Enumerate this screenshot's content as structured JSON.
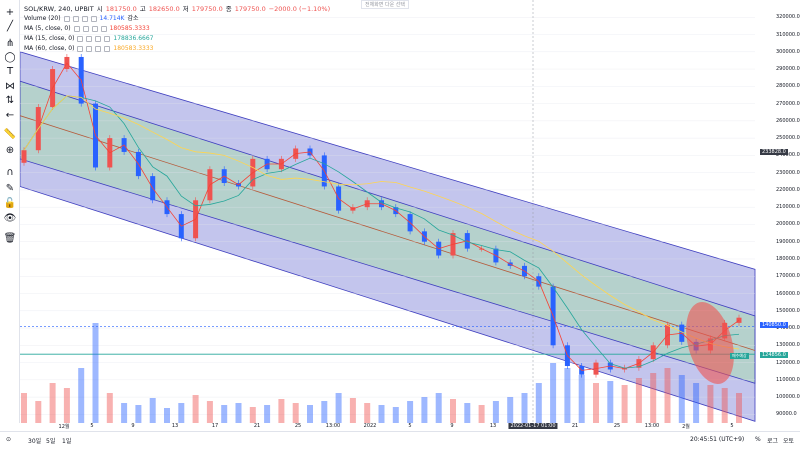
{
  "legend": {
    "symbol": "SOL/KRW, 240, UPBIT",
    "open_label": "시",
    "open": "181750.0",
    "high_label": "고",
    "high": "182650.0",
    "low_label": "저",
    "low": "179750.0",
    "close_label": "종",
    "close": "179750.0",
    "change": "−2000.0 (−1.10%)",
    "volume_label": "Volume (20)",
    "volume_value": "14.714K",
    "volume_suffix": "감소",
    "ma1_label": "MA (5, close, 0)",
    "ma1_value": "180585.3333",
    "ma2_label": "MA (15, close, 0)",
    "ma2_value": "178836.6667",
    "ma3_label": "MA (60, close, 0)",
    "ma3_value": "180583.3333"
  },
  "watermark": "전체화면 다운 선택",
  "colors": {
    "up": "#ef5350",
    "down": "#2962ff",
    "ma5": "#f44336",
    "ma15": "#26a69a",
    "ma60": "#ffd54f",
    "outer_channel": "#7b7fd6",
    "inner_channel": "#a5e0a5",
    "midline": "#b55a3a",
    "ellipse": "#ef5350",
    "h_line_price": "#26a69a",
    "h_line_dashed": "#2962ff"
  },
  "bottom": {
    "ranges": [
      "30일",
      "5일",
      "1일"
    ],
    "clock": "20:45:51 (UTC+9)",
    "pct": "%",
    "log": "로그",
    "auto": "오토"
  },
  "price_tags": {
    "current": "233828.0",
    "dashed": "140850.0",
    "support": "124856.0",
    "support_note": "매수예상"
  },
  "chart_data": {
    "type": "line",
    "title": "SOL/KRW, 240, UPBIT",
    "xlabel": "",
    "ylabel": "",
    "ylim": [
      85000,
      330000
    ],
    "y_ticks": [
      90000,
      100000,
      110000,
      120000,
      130000,
      140000,
      150000,
      160000,
      170000,
      180000,
      190000,
      200000,
      210000,
      220000,
      230000,
      240000,
      250000,
      260000,
      270000,
      280000,
      290000,
      300000,
      310000,
      320000
    ],
    "x_tick_labels": [
      "12월",
      "5",
      "9",
      "13",
      "17",
      "21",
      "25",
      "13:00",
      "2022",
      "5",
      "9",
      "13",
      "2022-01-17  01:00",
      "21",
      "25",
      "13:00",
      "2월",
      "5"
    ],
    "series": [
      {
        "x": [
          0,
          2,
          4,
          6,
          8,
          10,
          12,
          14,
          16,
          18,
          20,
          22,
          24,
          26,
          28,
          30,
          32,
          34,
          36,
          38,
          40,
          42,
          44,
          46,
          48,
          50,
          52,
          54,
          56,
          58,
          60,
          62,
          64,
          66,
          68,
          70,
          72,
          74,
          76,
          78,
          80,
          82,
          84,
          86,
          88,
          90,
          92,
          94,
          96,
          98,
          100
        ],
        "values": [
          243000,
          268000,
          290000,
          297000,
          270000,
          233000,
          250000,
          242000,
          228000,
          214000,
          206000,
          192000,
          214000,
          232000,
          224000,
          222000,
          238000,
          232000,
          238000,
          244000,
          240000,
          222000,
          208000,
          210000,
          214000,
          210000,
          206000,
          196000,
          190000,
          182000,
          195000,
          186000,
          186000,
          178000,
          176000,
          170000,
          164000,
          130000,
          118000,
          113000,
          120000,
          116000,
          117000,
          122000,
          130000,
          142000,
          132000,
          127000,
          134000,
          143000,
          146000
        ]
      }
    ],
    "volume": [
      30,
      22,
      40,
      35,
      55,
      100,
      30,
      20,
      18,
      25,
      15,
      20,
      28,
      22,
      18,
      20,
      16,
      18,
      24,
      20,
      18,
      22,
      30,
      25,
      20,
      18,
      16,
      22,
      26,
      30,
      24,
      20,
      18,
      22,
      26,
      30,
      40,
      60,
      55,
      48,
      40,
      42,
      38,
      45,
      50,
      55,
      48,
      40,
      38,
      35,
      30
    ],
    "channel": {
      "outer_upper": [
        300000,
        174000
      ],
      "outer_lower": [
        222000,
        86000
      ],
      "inner_upper": [
        283000,
        147000
      ],
      "inner_lower": [
        238000,
        108000
      ],
      "mid": [
        263000,
        127000
      ]
    },
    "annotations": [
      "매수예상"
    ]
  }
}
